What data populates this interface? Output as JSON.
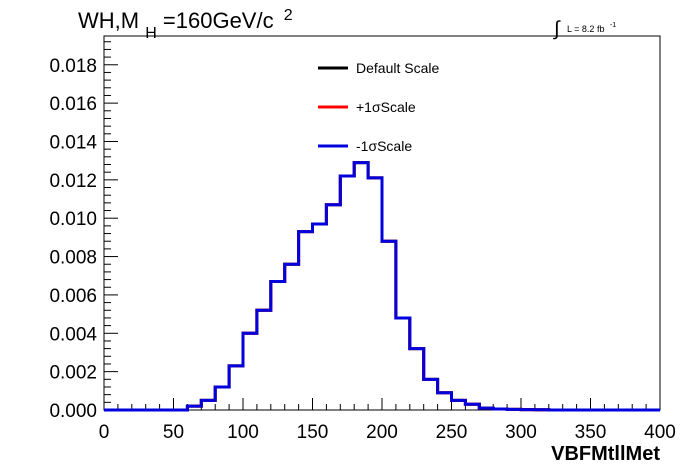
{
  "chart_data": {
    "type": "line",
    "title": {
      "main": "WH,M",
      "sub": "H",
      "rest": "=160GeV/c",
      "sup": "2"
    },
    "lumi": {
      "integral": "∫",
      "text": "L = 8.2 fb",
      "sup": "-1"
    },
    "xlabel": "VBFMtllMet",
    "ylabel": "",
    "xlim": [
      0,
      400
    ],
    "ylim": [
      0,
      0.0195
    ],
    "x_ticks": [
      "0",
      "50",
      "100",
      "150",
      "200",
      "250",
      "300",
      "350",
      "400"
    ],
    "y_ticks": [
      "0.000",
      "0.002",
      "0.004",
      "0.006",
      "0.008",
      "0.010",
      "0.012",
      "0.014",
      "0.016",
      "0.018"
    ],
    "bin_width": 10,
    "x_bin_edges_start": 0,
    "series": [
      {
        "name": "Default Scale",
        "color": "#000000",
        "values": [
          0,
          0,
          0,
          0,
          0,
          0,
          0.0002,
          0.0005,
          0.0012,
          0.0023,
          0.004,
          0.0052,
          0.0067,
          0.0076,
          0.0093,
          0.0097,
          0.0107,
          0.0122,
          0.0129,
          0.0121,
          0.0088,
          0.0048,
          0.0032,
          0.0016,
          0.0009,
          0.0005,
          0.0003,
          0.0001,
          5e-05,
          3e-05,
          2e-05,
          1e-05,
          0,
          0,
          0,
          0,
          0,
          0,
          0,
          0
        ]
      },
      {
        "name": "+1σScale",
        "color": "#ff0000",
        "values": [
          0,
          0,
          0,
          0,
          0,
          0,
          0.0002,
          0.0005,
          0.0012,
          0.0023,
          0.004,
          0.0052,
          0.0067,
          0.0076,
          0.0093,
          0.0097,
          0.0107,
          0.0122,
          0.0129,
          0.0121,
          0.0088,
          0.0048,
          0.0032,
          0.0016,
          0.0009,
          0.0005,
          0.0003,
          0.0001,
          5e-05,
          3e-05,
          2e-05,
          1e-05,
          0,
          0,
          0,
          0,
          0,
          0,
          0,
          0
        ]
      },
      {
        "name": "-1σScale",
        "color": "#0000dd",
        "values": [
          0,
          0,
          0,
          0,
          0,
          0,
          0.0002,
          0.0005,
          0.0012,
          0.0023,
          0.004,
          0.0052,
          0.0067,
          0.0076,
          0.0093,
          0.0097,
          0.0107,
          0.0122,
          0.0129,
          0.0121,
          0.0088,
          0.0048,
          0.0032,
          0.0016,
          0.0009,
          0.0005,
          0.0003,
          0.0001,
          5e-05,
          3e-05,
          2e-05,
          1e-05,
          0,
          0,
          0,
          0,
          0,
          0,
          0,
          0
        ]
      }
    ],
    "legend": {
      "placement": "top-center",
      "entries": [
        "Default Scale",
        "+1σScale",
        "-1σScale"
      ]
    },
    "grid": false
  }
}
